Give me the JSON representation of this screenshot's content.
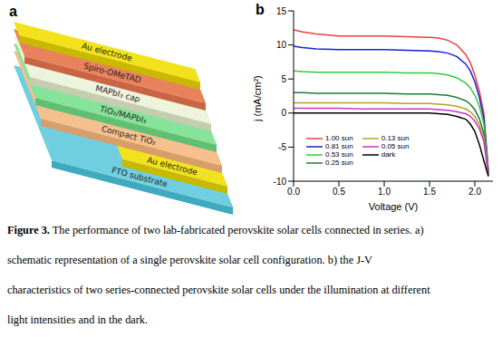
{
  "figure": {
    "panel_a": {
      "label": "a",
      "layers": [
        "Au electrode",
        "Spiro-OMeTAD",
        "MAPbI₃ cap",
        "TiO₂/MAPbI₃",
        "Compact TiO₂",
        "Au electrode",
        "FTO substrate"
      ]
    },
    "panel_b": {
      "label": "b"
    }
  },
  "chart_data": {
    "type": "line",
    "xlabel": "Voltage (V)",
    "ylabel": "j (mA/cm²)",
    "x": [
      0,
      0.1,
      0.25,
      0.5,
      0.75,
      1.0,
      1.25,
      1.5,
      1.6,
      1.7,
      1.8,
      1.9,
      1.95,
      2.0,
      2.05,
      2.1,
      2.15
    ],
    "series": [
      {
        "name": "1.00 sun",
        "color": "#e8423c",
        "values": [
          12.2,
          11.9,
          11.6,
          11.3,
          11.3,
          11.3,
          11.2,
          11.1,
          11.0,
          10.7,
          10.0,
          8.6,
          7.4,
          5.6,
          3.2,
          0.0,
          -8.5
        ]
      },
      {
        "name": "0.81 sun",
        "color": "#1c1cd9",
        "values": [
          9.8,
          9.6,
          9.4,
          9.3,
          9.3,
          9.3,
          9.2,
          9.1,
          9.0,
          8.8,
          8.3,
          7.2,
          6.2,
          4.6,
          2.3,
          -0.8,
          -8.7
        ]
      },
      {
        "name": "0.53 sun",
        "color": "#2ecc40",
        "values": [
          6.2,
          6.1,
          6.0,
          6.0,
          6.0,
          6.0,
          5.9,
          5.9,
          5.8,
          5.6,
          5.2,
          4.4,
          3.7,
          2.6,
          1.0,
          -1.6,
          -8.9
        ]
      },
      {
        "name": "0.25 sun",
        "color": "#1f7a3a",
        "values": [
          3.0,
          3.0,
          2.9,
          2.9,
          2.9,
          2.9,
          2.8,
          2.8,
          2.7,
          2.6,
          2.3,
          1.8,
          1.3,
          0.5,
          -0.8,
          -3.0,
          -9.0
        ]
      },
      {
        "name": "0.13 sun",
        "color": "#b8a020",
        "values": [
          1.5,
          1.5,
          1.5,
          1.5,
          1.5,
          1.5,
          1.4,
          1.4,
          1.3,
          1.2,
          1.0,
          0.6,
          0.2,
          -0.5,
          -1.7,
          -3.7,
          -9.1
        ]
      },
      {
        "name": "0.05 sun",
        "color": "#cc33cc",
        "values": [
          0.7,
          0.7,
          0.7,
          0.7,
          0.6,
          0.6,
          0.6,
          0.6,
          0.5,
          0.4,
          0.2,
          -0.1,
          -0.5,
          -1.2,
          -2.3,
          -4.2,
          -9.2
        ]
      },
      {
        "name": "dark",
        "color": "#000000",
        "values": [
          0,
          0,
          0,
          0,
          0,
          0,
          0,
          0,
          -0.1,
          -0.2,
          -0.5,
          -0.9,
          -1.6,
          -2.7,
          -4.6,
          -7.0,
          -9.3
        ]
      }
    ],
    "xlim": [
      0,
      2.2
    ],
    "xticks": [
      {
        "value": 0,
        "label": "0.0"
      },
      0.5,
      {
        "value": 1,
        "label": "1.0"
      },
      1.5,
      {
        "value": 2,
        "label": "2.0"
      }
    ],
    "ylim": [
      -10,
      15
    ],
    "yticks": [
      -10,
      -5,
      0,
      5,
      10,
      15
    ],
    "legend": "lower left",
    "grid": false
  },
  "caption": {
    "label": "Figure 3.",
    "lines": [
      "The performance of two lab-fabricated perovskite solar cells connected in series. a)",
      "schematic representation of a single perovskite solar cell configuration. b) the J-V",
      "characteristics of two series-connected perovskite solar cells under the illumination at different",
      "light intensities and in the dark."
    ]
  }
}
